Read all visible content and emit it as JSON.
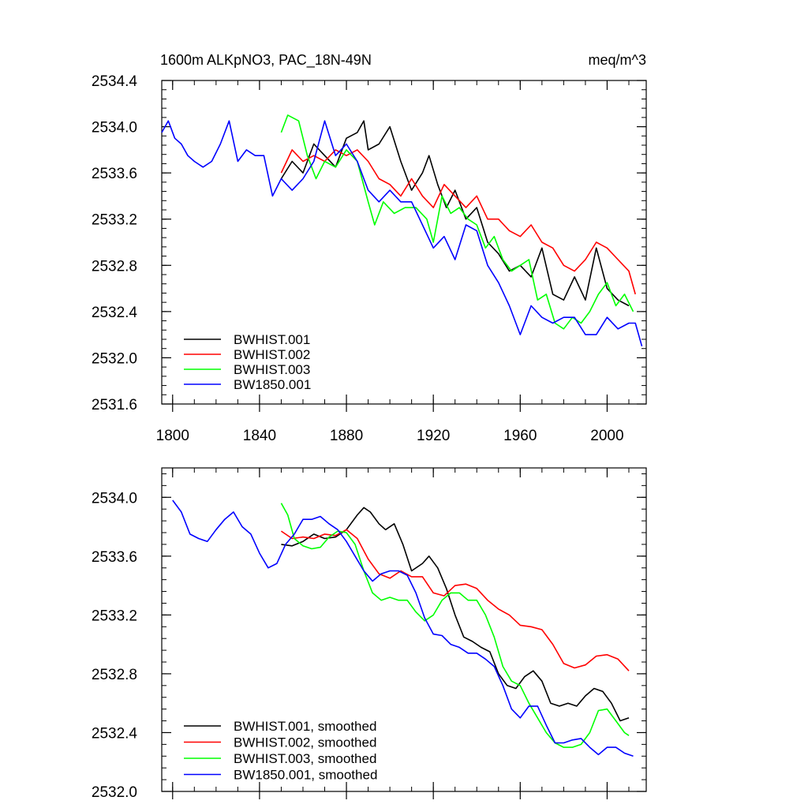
{
  "chart_data": [
    {
      "type": "line",
      "title": "1600m ALKpNO3, PAC_18N-49N",
      "units": "meq/m^3",
      "xlabel": "",
      "ylabel": "",
      "xlim": [
        1795,
        2018
      ],
      "ylim": [
        2531.6,
        2534.4
      ],
      "xticks": [
        1800,
        1840,
        1880,
        1920,
        1960,
        2000
      ],
      "yticks": [
        2531.6,
        2532.0,
        2532.4,
        2532.8,
        2533.2,
        2533.6,
        2534.0,
        2534.4
      ],
      "ytick_labels": [
        "2531.6",
        "2532.0",
        "2532.4",
        "2532.8",
        "2533.2",
        "2533.6",
        "2534.0",
        "2534.4"
      ],
      "legend_position": "bottom-left",
      "series": [
        {
          "name": "BWHIST.001",
          "color": "#000000",
          "x": [
            1850,
            1855,
            1860,
            1865,
            1870,
            1875,
            1880,
            1885,
            1888,
            1890,
            1895,
            1900,
            1905,
            1910,
            1915,
            1918,
            1922,
            1926,
            1930,
            1935,
            1940,
            1945,
            1950,
            1955,
            1960,
            1965,
            1970,
            1975,
            1980,
            1985,
            1990,
            1995,
            2000,
            2005,
            2010
          ],
          "y": [
            2533.55,
            2533.7,
            2533.6,
            2533.85,
            2533.75,
            2533.65,
            2533.9,
            2533.95,
            2534.05,
            2533.8,
            2533.85,
            2534.0,
            2533.7,
            2533.45,
            2533.6,
            2533.75,
            2533.5,
            2533.3,
            2533.45,
            2533.2,
            2533.3,
            2533.0,
            2532.9,
            2532.75,
            2532.8,
            2532.7,
            2532.95,
            2532.55,
            2532.5,
            2532.7,
            2532.5,
            2532.95,
            2532.6,
            2532.5,
            2532.45
          ]
        },
        {
          "name": "BWHIST.002",
          "color": "#ff0000",
          "x": [
            1850,
            1855,
            1860,
            1865,
            1870,
            1875,
            1880,
            1885,
            1890,
            1895,
            1900,
            1905,
            1910,
            1915,
            1920,
            1925,
            1930,
            1935,
            1940,
            1945,
            1950,
            1955,
            1960,
            1965,
            1970,
            1975,
            1980,
            1985,
            1990,
            1995,
            2000,
            2005,
            2010,
            2013
          ],
          "y": [
            2533.6,
            2533.8,
            2533.7,
            2533.75,
            2533.7,
            2533.8,
            2533.75,
            2533.8,
            2533.7,
            2533.55,
            2533.5,
            2533.4,
            2533.55,
            2533.4,
            2533.3,
            2533.5,
            2533.4,
            2533.3,
            2533.4,
            2533.2,
            2533.2,
            2533.1,
            2533.05,
            2533.15,
            2533.0,
            2532.95,
            2532.8,
            2532.75,
            2532.85,
            2533.0,
            2532.95,
            2532.85,
            2532.75,
            2532.55
          ]
        },
        {
          "name": "BWHIST.003",
          "color": "#00ff00",
          "x": [
            1850,
            1853,
            1858,
            1862,
            1866,
            1870,
            1875,
            1880,
            1885,
            1890,
            1893,
            1897,
            1902,
            1907,
            1912,
            1917,
            1920,
            1924,
            1928,
            1932,
            1936,
            1940,
            1944,
            1948,
            1952,
            1956,
            1960,
            1964,
            1968,
            1972,
            1976,
            1980,
            1984,
            1988,
            1992,
            1996,
            2000,
            2004,
            2008,
            2012
          ],
          "y": [
            2533.95,
            2534.1,
            2534.05,
            2533.75,
            2533.55,
            2533.7,
            2533.65,
            2533.8,
            2533.7,
            2533.35,
            2533.15,
            2533.35,
            2533.25,
            2533.3,
            2533.3,
            2533.2,
            2533.0,
            2533.4,
            2533.25,
            2533.3,
            2533.2,
            2533.15,
            2532.95,
            2533.05,
            2532.85,
            2532.75,
            2532.8,
            2532.85,
            2532.5,
            2532.55,
            2532.3,
            2532.25,
            2532.35,
            2532.3,
            2532.4,
            2532.55,
            2532.65,
            2532.45,
            2532.55,
            2532.4
          ]
        },
        {
          "name": "BW1850.001",
          "color": "#0000ff",
          "x": [
            1795,
            1798,
            1801,
            1804,
            1807,
            1810,
            1814,
            1818,
            1822,
            1826,
            1830,
            1834,
            1838,
            1842,
            1846,
            1850,
            1855,
            1860,
            1865,
            1870,
            1875,
            1880,
            1885,
            1890,
            1895,
            1900,
            1905,
            1910,
            1915,
            1920,
            1925,
            1930,
            1935,
            1940,
            1945,
            1950,
            1955,
            1960,
            1965,
            1970,
            1975,
            1980,
            1985,
            1990,
            1995,
            2000,
            2005,
            2010,
            2013,
            2016
          ],
          "y": [
            2533.95,
            2534.05,
            2533.9,
            2533.85,
            2533.75,
            2533.7,
            2533.65,
            2533.7,
            2533.85,
            2534.05,
            2533.7,
            2533.8,
            2533.75,
            2533.75,
            2533.4,
            2533.55,
            2533.45,
            2533.55,
            2533.7,
            2534.05,
            2533.75,
            2533.85,
            2533.7,
            2533.45,
            2533.35,
            2533.45,
            2533.35,
            2533.35,
            2533.15,
            2532.95,
            2533.05,
            2532.85,
            2533.15,
            2533.1,
            2532.8,
            2532.65,
            2532.45,
            2532.2,
            2532.45,
            2532.35,
            2532.3,
            2532.35,
            2532.35,
            2532.2,
            2532.2,
            2532.35,
            2532.25,
            2532.3,
            2532.3,
            2532.1
          ]
        }
      ]
    },
    {
      "type": "line",
      "title": "",
      "xlabel": "",
      "ylabel": "",
      "xlim": [
        1795,
        2018
      ],
      "ylim": [
        2532.0,
        2534.2
      ],
      "xticks": [
        1800,
        1840,
        1880,
        1920,
        1960,
        2000
      ],
      "yticks": [
        2532.0,
        2532.4,
        2532.8,
        2533.2,
        2533.6,
        2534.0
      ],
      "ytick_labels": [
        "2532.0",
        "2532.4",
        "2532.8",
        "2533.2",
        "2533.6",
        "2534.0"
      ],
      "legend_position": "bottom-left",
      "series": [
        {
          "name": "BWHIST.001, smoothed",
          "color": "#000000",
          "x": [
            1850,
            1855,
            1860,
            1865,
            1870,
            1875,
            1880,
            1885,
            1888,
            1891,
            1895,
            1898,
            1902,
            1906,
            1910,
            1915,
            1918,
            1922,
            1926,
            1930,
            1934,
            1938,
            1942,
            1946,
            1950,
            1954,
            1958,
            1962,
            1966,
            1970,
            1974,
            1978,
            1982,
            1986,
            1990,
            1994,
            1998,
            2002,
            2006,
            2010
          ],
          "y": [
            2533.68,
            2533.67,
            2533.7,
            2533.75,
            2533.72,
            2533.73,
            2533.78,
            2533.88,
            2533.93,
            2533.9,
            2533.82,
            2533.78,
            2533.82,
            2533.68,
            2533.5,
            2533.55,
            2533.6,
            2533.52,
            2533.38,
            2533.2,
            2533.05,
            2533.02,
            2532.98,
            2532.95,
            2532.8,
            2532.72,
            2532.7,
            2532.78,
            2532.82,
            2532.75,
            2532.6,
            2532.58,
            2532.6,
            2532.58,
            2532.65,
            2532.7,
            2532.68,
            2532.6,
            2532.48,
            2532.5
          ]
        },
        {
          "name": "BWHIST.002, smoothed",
          "color": "#ff0000",
          "x": [
            1850,
            1855,
            1860,
            1865,
            1870,
            1875,
            1880,
            1885,
            1890,
            1895,
            1900,
            1905,
            1910,
            1915,
            1920,
            1925,
            1930,
            1935,
            1940,
            1945,
            1950,
            1955,
            1960,
            1965,
            1970,
            1975,
            1980,
            1985,
            1990,
            1995,
            2000,
            2005,
            2010
          ],
          "y": [
            2533.77,
            2533.72,
            2533.73,
            2533.72,
            2533.75,
            2533.74,
            2533.78,
            2533.72,
            2533.58,
            2533.48,
            2533.45,
            2533.5,
            2533.46,
            2533.46,
            2533.35,
            2533.33,
            2533.4,
            2533.41,
            2533.38,
            2533.3,
            2533.24,
            2533.2,
            2533.13,
            2533.12,
            2533.1,
            2533.0,
            2532.87,
            2532.84,
            2532.86,
            2532.92,
            2532.93,
            2532.9,
            2532.82
          ]
        },
        {
          "name": "BWHIST.003, smoothed",
          "color": "#00ff00",
          "x": [
            1850,
            1853,
            1856,
            1860,
            1864,
            1868,
            1872,
            1876,
            1880,
            1884,
            1888,
            1892,
            1896,
            1900,
            1904,
            1908,
            1912,
            1916,
            1920,
            1924,
            1928,
            1932,
            1936,
            1940,
            1944,
            1948,
            1952,
            1956,
            1960,
            1964,
            1968,
            1972,
            1976,
            1980,
            1984,
            1988,
            1992,
            1996,
            2000,
            2004,
            2008,
            2010
          ],
          "y": [
            2533.96,
            2533.88,
            2533.72,
            2533.67,
            2533.65,
            2533.66,
            2533.73,
            2533.77,
            2533.76,
            2533.68,
            2533.5,
            2533.35,
            2533.3,
            2533.32,
            2533.3,
            2533.3,
            2533.22,
            2533.16,
            2533.2,
            2533.3,
            2533.35,
            2533.35,
            2533.3,
            2533.3,
            2533.2,
            2533.05,
            2532.85,
            2532.75,
            2532.72,
            2532.6,
            2532.5,
            2532.4,
            2532.33,
            2532.3,
            2532.3,
            2532.32,
            2532.4,
            2532.55,
            2532.56,
            2532.48,
            2532.4,
            2532.38
          ]
        },
        {
          "name": "BW1850.001, smoothed",
          "color": "#0000ff",
          "x": [
            1800,
            1804,
            1808,
            1812,
            1816,
            1820,
            1824,
            1828,
            1832,
            1836,
            1840,
            1844,
            1848,
            1852,
            1856,
            1860,
            1864,
            1868,
            1872,
            1876,
            1880,
            1884,
            1888,
            1892,
            1896,
            1900,
            1904,
            1908,
            1912,
            1916,
            1920,
            1924,
            1928,
            1932,
            1936,
            1940,
            1944,
            1948,
            1952,
            1956,
            1960,
            1964,
            1968,
            1972,
            1976,
            1980,
            1984,
            1988,
            1992,
            1996,
            2000,
            2004,
            2008,
            2012
          ],
          "y": [
            2533.98,
            2533.9,
            2533.75,
            2533.72,
            2533.7,
            2533.78,
            2533.85,
            2533.9,
            2533.8,
            2533.75,
            2533.62,
            2533.52,
            2533.55,
            2533.68,
            2533.75,
            2533.85,
            2533.85,
            2533.87,
            2533.82,
            2533.78,
            2533.7,
            2533.6,
            2533.5,
            2533.43,
            2533.48,
            2533.5,
            2533.5,
            2533.47,
            2533.35,
            2533.18,
            2533.07,
            2533.06,
            2533.0,
            2532.98,
            2532.94,
            2532.94,
            2532.9,
            2532.85,
            2532.72,
            2532.56,
            2532.5,
            2532.58,
            2532.58,
            2532.45,
            2532.33,
            2532.33,
            2532.35,
            2532.36,
            2532.3,
            2532.25,
            2532.3,
            2532.3,
            2532.26,
            2532.24
          ]
        }
      ]
    }
  ]
}
